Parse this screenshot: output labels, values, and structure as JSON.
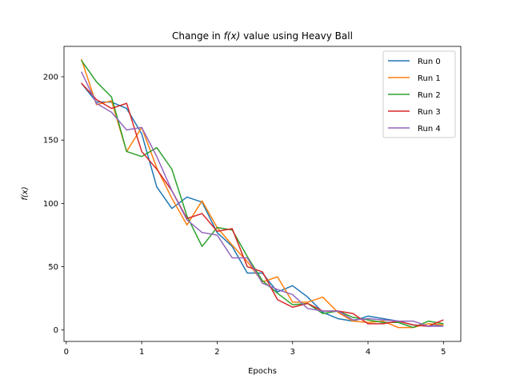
{
  "chart_data": {
    "type": "line",
    "title_prefix": "Change in ",
    "title_math": "f(x)",
    "title_suffix": " value using Heavy Ball",
    "xlabel": "Epochs",
    "ylabel": "f(x)",
    "xlim": [
      -0.03,
      5.23
    ],
    "ylim": [
      -9,
      224
    ],
    "xticks": [
      0,
      1,
      2,
      3,
      4,
      5
    ],
    "yticks": [
      0,
      50,
      100,
      150,
      200
    ],
    "legend_position": "top-right",
    "x": [
      0.2,
      0.4,
      0.6,
      0.8,
      1.0,
      1.2,
      1.4,
      1.6,
      1.8,
      2.0,
      2.2,
      2.4,
      2.6,
      2.8,
      3.0,
      3.2,
      3.4,
      3.6,
      3.8,
      4.0,
      4.2,
      4.4,
      4.6,
      4.8,
      5.0
    ],
    "series": [
      {
        "name": "Run 0",
        "color": "#1f77b4",
        "values": [
          195,
          180,
          180,
          175,
          155,
          113,
          96,
          105,
          101,
          77,
          66,
          45,
          45,
          30,
          35,
          26,
          14,
          9,
          7,
          11,
          9,
          7,
          4,
          3,
          4
        ]
      },
      {
        "name": "Run 1",
        "color": "#ff7f0e",
        "values": [
          214,
          178,
          181,
          141,
          160,
          128,
          104,
          83,
          102,
          81,
          67,
          54,
          38,
          42,
          22,
          22,
          26,
          14,
          7,
          6,
          7,
          2,
          2,
          5,
          4
        ]
      },
      {
        "name": "Run 2",
        "color": "#2ca02c",
        "values": [
          213,
          196,
          184,
          141,
          137,
          144,
          127,
          90,
          66,
          81,
          79,
          58,
          39,
          29,
          20,
          21,
          13,
          15,
          10,
          8,
          6,
          6,
          2,
          7,
          5
        ]
      },
      {
        "name": "Run 3",
        "color": "#d62728",
        "values": [
          195,
          182,
          175,
          179,
          141,
          127,
          110,
          88,
          92,
          78,
          80,
          50,
          46,
          24,
          18,
          21,
          15,
          15,
          13,
          5,
          5,
          7,
          4,
          3,
          8
        ]
      },
      {
        "name": "Run 4",
        "color": "#9467bd",
        "values": [
          204,
          179,
          172,
          158,
          160,
          137,
          110,
          87,
          77,
          75,
          57,
          57,
          37,
          32,
          28,
          17,
          15,
          15,
          8,
          9,
          8,
          7,
          7,
          3,
          3
        ]
      }
    ]
  }
}
